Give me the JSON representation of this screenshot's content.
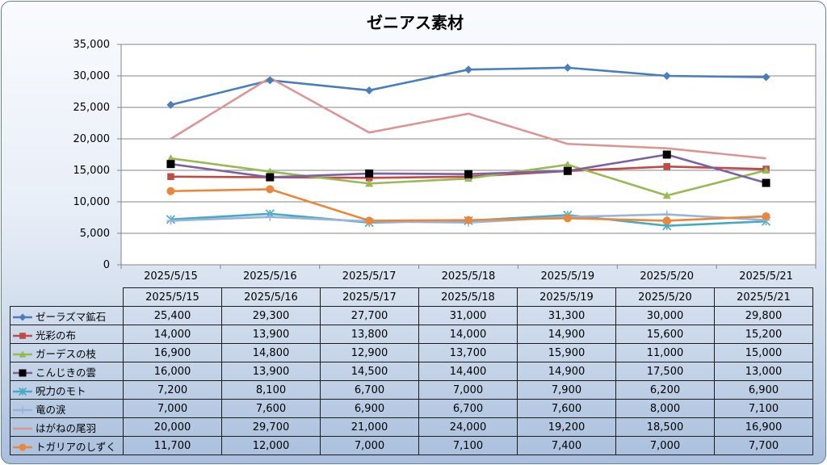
{
  "chart_data": {
    "type": "line",
    "title": "ゼニアス素材",
    "categories": [
      "2025/5/15",
      "2025/5/16",
      "2025/5/17",
      "2025/5/18",
      "2025/5/19",
      "2025/5/20",
      "2025/5/21"
    ],
    "ylim": [
      0,
      35000
    ],
    "yticks": [
      "0",
      "5,000",
      "10,000",
      "15,000",
      "20,000",
      "25,000",
      "30,000",
      "35,000"
    ],
    "grid": true,
    "legend": "data-table-below",
    "series": [
      {
        "name": "ゼーラズマ鉱石",
        "color": "#4a7ebb",
        "marker": "diamond",
        "values": [
          25400,
          29300,
          27700,
          31000,
          31300,
          30000,
          29800
        ],
        "labels": [
          "25,400",
          "29,300",
          "27,700",
          "31,000",
          "31,300",
          "30,000",
          "29,800"
        ]
      },
      {
        "name": "光彩の布",
        "color": "#be4b48",
        "marker": "square",
        "values": [
          14000,
          13900,
          13800,
          14000,
          14900,
          15600,
          15200
        ],
        "labels": [
          "14,000",
          "13,900",
          "13,800",
          "14,000",
          "14,900",
          "15,600",
          "15,200"
        ]
      },
      {
        "name": "ガーデスの枝",
        "color": "#98b954",
        "marker": "triangle",
        "values": [
          16900,
          14800,
          12900,
          13700,
          15900,
          11000,
          15000
        ],
        "labels": [
          "16,900",
          "14,800",
          "12,900",
          "13,700",
          "15,900",
          "11,000",
          "15,000"
        ]
      },
      {
        "name": "こんじきの雲",
        "color": "#7d60a0",
        "marker": "blacksquare",
        "values": [
          16000,
          13900,
          14500,
          14400,
          14900,
          17500,
          13000
        ],
        "labels": [
          "16,000",
          "13,900",
          "14,500",
          "14,400",
          "14,900",
          "17,500",
          "13,000"
        ]
      },
      {
        "name": "呪力のモト",
        "color": "#46aac5",
        "marker": "star",
        "values": [
          7200,
          8100,
          6700,
          7000,
          7900,
          6200,
          6900
        ],
        "labels": [
          "7,200",
          "8,100",
          "6,700",
          "7,000",
          "7,900",
          "6,200",
          "6,900"
        ]
      },
      {
        "name": "竜の涙",
        "color": "#9bb3dc",
        "marker": "plus",
        "values": [
          7000,
          7600,
          6900,
          6700,
          7600,
          8000,
          7100
        ],
        "labels": [
          "7,000",
          "7,600",
          "6,900",
          "6,700",
          "7,600",
          "8,000",
          "7,100"
        ]
      },
      {
        "name": "はがねの尾羽",
        "color": "#d99694",
        "marker": "none",
        "values": [
          20000,
          29700,
          21000,
          24000,
          19200,
          18500,
          16900
        ],
        "labels": [
          "20,000",
          "29,700",
          "21,000",
          "24,000",
          "19,200",
          "18,500",
          "16,900"
        ]
      },
      {
        "name": "トガリアのしずく",
        "color": "#e9883a",
        "marker": "circle",
        "values": [
          11700,
          12000,
          7000,
          7100,
          7400,
          7000,
          7700
        ],
        "labels": [
          "11,700",
          "12,000",
          "7,000",
          "7,100",
          "7,400",
          "7,000",
          "7,700"
        ]
      }
    ]
  }
}
